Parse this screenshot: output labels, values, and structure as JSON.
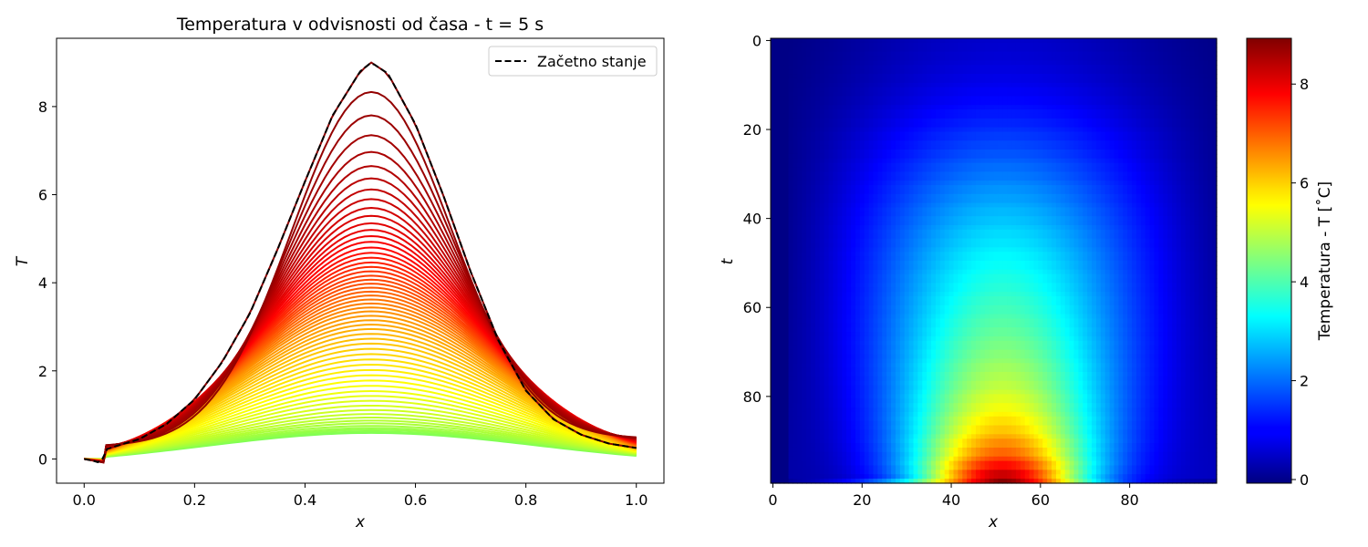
{
  "chart_data": [
    {
      "type": "line",
      "title": "Temperatura v odvisnosti od časa - t = 5 s",
      "xlabel": "x",
      "ylabel": "T",
      "xlim": [
        -0.05,
        1.05
      ],
      "ylim": [
        -0.55,
        9.55
      ],
      "xticks": [
        "0.0",
        "0.2",
        "0.4",
        "0.6",
        "0.8",
        "1.0"
      ],
      "yticks": [
        "0",
        "2",
        "4",
        "6",
        "8"
      ],
      "legend_position": "top-right",
      "series": [
        {
          "name": "Začetno stanje",
          "style": "dashed",
          "color": "#000000",
          "x": [
            0.0,
            0.02,
            0.03,
            0.04,
            0.06,
            0.1,
            0.15,
            0.2,
            0.25,
            0.3,
            0.35,
            0.4,
            0.45,
            0.5,
            0.52,
            0.55,
            0.6,
            0.65,
            0.7,
            0.75,
            0.8,
            0.85,
            0.9,
            0.95,
            1.0
          ],
          "y": [
            0.0,
            -0.05,
            -0.1,
            0.22,
            0.3,
            0.45,
            0.8,
            1.35,
            2.2,
            3.3,
            4.75,
            6.3,
            7.8,
            8.8,
            9.0,
            8.75,
            7.6,
            6.0,
            4.25,
            2.7,
            1.55,
            0.9,
            0.55,
            0.35,
            0.25
          ]
        }
      ],
      "family_curves": {
        "description_count": 60,
        "peak_x": 0.52,
        "peaks": [
          9.0,
          8.33,
          7.8,
          7.35,
          6.97,
          6.65,
          6.37,
          6.12,
          5.9,
          5.7,
          5.52,
          5.35,
          5.2,
          5.06,
          4.93,
          4.8,
          4.68,
          4.57,
          4.46,
          4.36,
          4.26,
          4.16,
          4.07,
          3.98,
          3.89,
          3.8,
          3.71,
          3.62,
          3.53,
          3.44,
          3.35,
          3.25,
          3.15,
          3.05,
          2.95,
          2.84,
          2.73,
          2.62,
          2.5,
          2.38,
          2.26,
          2.14,
          2.02,
          1.9,
          1.78,
          1.66,
          1.54,
          1.43,
          1.32,
          1.21,
          1.11,
          1.02,
          0.94,
          0.87,
          0.81,
          0.75,
          0.7,
          0.66,
          0.62,
          0.59
        ],
        "right_end_y_start": 0.5,
        "right_end_y_end": 0.07,
        "left_end_y_start": 0.32,
        "left_end_y_end": 0.05,
        "colors": [
          "#8b0000",
          "#ff0000",
          "#ff8c00",
          "#ffff00",
          "#7fff55"
        ]
      }
    },
    {
      "type": "heatmap",
      "xlabel": "x",
      "ylabel": "t",
      "xlim": [
        -0.5,
        99.5
      ],
      "ylim": [
        99.5,
        -0.5
      ],
      "xticks": [
        "0",
        "20",
        "40",
        "60",
        "80"
      ],
      "yticks": [
        "0",
        "20",
        "40",
        "60",
        "80"
      ],
      "colormap": "jet",
      "value_range": [
        0,
        9
      ],
      "colorbar_label": "Temperatura - T [˚C]",
      "colorbar_ticks": [
        "0",
        "2",
        "4",
        "6",
        "8"
      ],
      "peak_center_x": 51,
      "value_top_row_max": 0.6,
      "value_bottom_row_max": 9.0
    }
  ]
}
